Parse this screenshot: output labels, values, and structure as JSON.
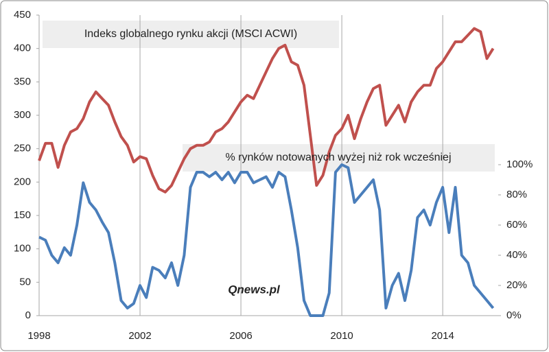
{
  "chart_data": {
    "type": "line",
    "annotations": [
      "Indeks globalnego rynku akcji (MSCI ACWI)",
      "% rynków notowanych wyżej niż rok wcześniej",
      "Qnews.pl"
    ],
    "x": [
      1998,
      1998.25,
      1998.5,
      1998.75,
      1999,
      1999.25,
      1999.5,
      1999.75,
      2000,
      2000.25,
      2000.5,
      2000.75,
      2001,
      2001.25,
      2001.5,
      2001.75,
      2002,
      2002.25,
      2002.5,
      2002.75,
      2003,
      2003.25,
      2003.5,
      2003.75,
      2004,
      2004.25,
      2004.5,
      2004.75,
      2005,
      2005.25,
      2005.5,
      2005.75,
      2006,
      2006.25,
      2006.5,
      2006.75,
      2007,
      2007.25,
      2007.5,
      2007.75,
      2008,
      2008.25,
      2008.5,
      2008.75,
      2009,
      2009.25,
      2009.5,
      2009.75,
      2010,
      2010.25,
      2010.5,
      2010.75,
      2011,
      2011.25,
      2011.5,
      2011.75,
      2012,
      2012.25,
      2012.5,
      2012.75,
      2013,
      2013.25,
      2013.5,
      2013.75,
      2014,
      2014.25,
      2014.5,
      2014.75,
      2015,
      2015.25,
      2015.5,
      2015.75,
      2016
    ],
    "series": [
      {
        "name": "MSCI ACWI",
        "color": "#c0504d",
        "axis": "y",
        "values": [
          232,
          258,
          258,
          222,
          255,
          275,
          280,
          295,
          320,
          335,
          325,
          315,
          290,
          268,
          255,
          230,
          238,
          235,
          210,
          190,
          185,
          195,
          215,
          235,
          250,
          255,
          255,
          260,
          275,
          280,
          290,
          305,
          320,
          330,
          325,
          345,
          365,
          385,
          400,
          405,
          380,
          375,
          345,
          270,
          195,
          210,
          245,
          270,
          280,
          300,
          265,
          295,
          320,
          340,
          345,
          285,
          300,
          315,
          290,
          320,
          335,
          345,
          345,
          370,
          380,
          395,
          410,
          410,
          420,
          430,
          425,
          385,
          400
        ]
      },
      {
        "name": "% rynków",
        "color": "#4a7ebb",
        "axis": "y2",
        "values": [
          52,
          50,
          40,
          35,
          45,
          40,
          60,
          88,
          75,
          70,
          62,
          55,
          35,
          10,
          5,
          8,
          20,
          12,
          32,
          30,
          25,
          35,
          20,
          40,
          85,
          95,
          95,
          92,
          95,
          90,
          95,
          88,
          95,
          95,
          88,
          90,
          92,
          85,
          95,
          92,
          70,
          45,
          10,
          0,
          0,
          0,
          15,
          95,
          100,
          98,
          75,
          80,
          85,
          90,
          70,
          5,
          20,
          28,
          10,
          30,
          65,
          70,
          60,
          75,
          85,
          55,
          85,
          40,
          35,
          20,
          15,
          10,
          5
        ]
      }
    ],
    "xlim": [
      1998,
      2016.2
    ],
    "xticks": [
      1998,
      2002,
      2006,
      2010,
      2014
    ],
    "ylim": [
      0,
      450
    ],
    "yticks": [
      0,
      50,
      100,
      150,
      200,
      250,
      300,
      350,
      400,
      450
    ],
    "y2lim": [
      0,
      199.1
    ],
    "y2ticks": [
      {
        "value": 0,
        "label": "0%"
      },
      {
        "value": 20,
        "label": "20%"
      },
      {
        "value": 40,
        "label": "40%"
      },
      {
        "value": 60,
        "label": "60%"
      },
      {
        "value": 80,
        "label": "80%"
      },
      {
        "value": 100,
        "label": "100%"
      }
    ],
    "grid": "x"
  }
}
